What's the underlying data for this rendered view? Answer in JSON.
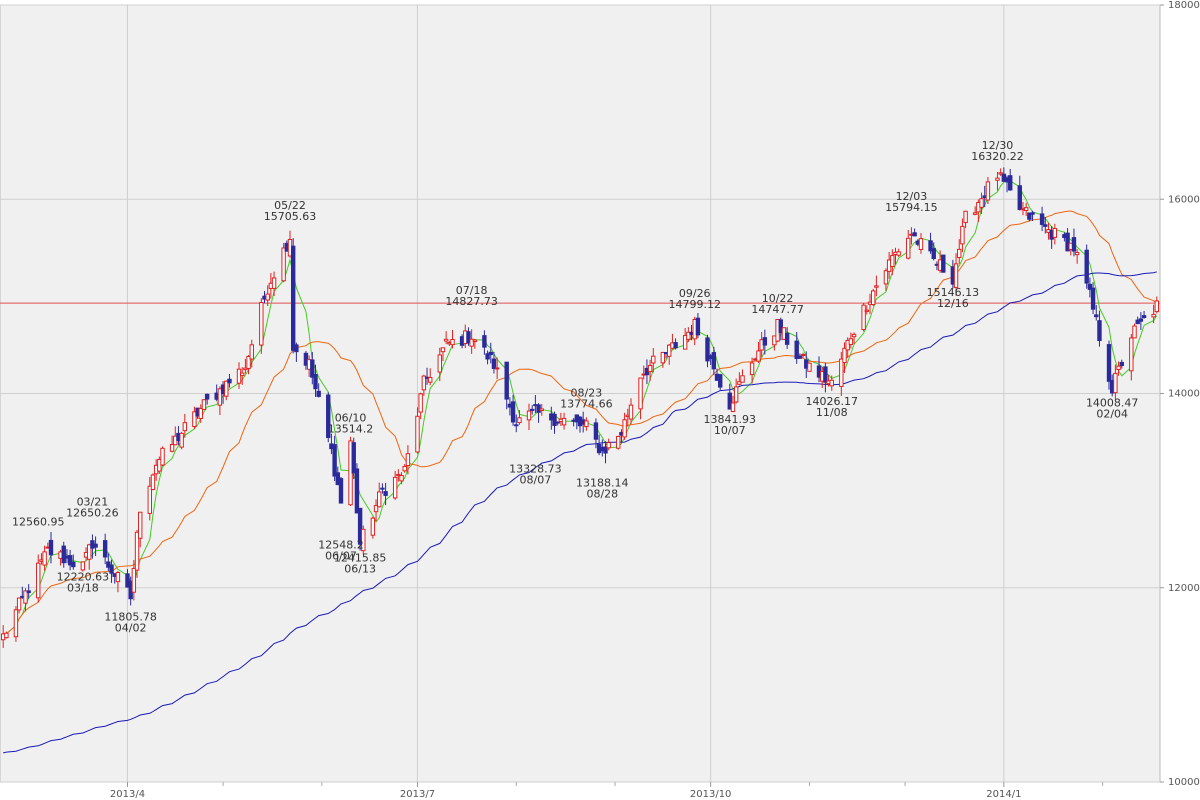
{
  "chart_data": {
    "type": "candlestick",
    "title": "",
    "ylim": [
      10000,
      18000
    ],
    "y_ticks": [
      "10000",
      "12000",
      "14000",
      "16000",
      "18000"
    ],
    "x_ticks": [
      {
        "date": "2013-04-01",
        "label": "2013/4"
      },
      {
        "date": "2013-07-01",
        "label": "2013/7"
      },
      {
        "date": "2013-10-01",
        "label": "2013/10"
      },
      {
        "date": "2014-01-01",
        "label": "2014/1"
      }
    ],
    "x_minor_ticks": [
      "2013-05-01",
      "2013-06-01",
      "2013-08-01",
      "2013-09-01",
      "2013-11-01",
      "2013-12-01",
      "2014-02-01"
    ],
    "x_range": [
      "2013-02-20",
      "2014-02-19"
    ],
    "grid": true,
    "reference_line": 14930,
    "colors": {
      "rising": "#e02020",
      "falling": "#2a2a9a",
      "ma_short": "#44cc22",
      "ma_mid": "#ee6611",
      "ma_long": "#1a1ab8",
      "reference": "#e05050",
      "plot_bg": "#f0f0f0",
      "grid": "#cfcfcf"
    },
    "anchor_points": [
      {
        "date": "2013-02-21",
        "close": 11500
      },
      {
        "date": "2013-03-07",
        "close": 12380
      },
      {
        "date": "2013-03-18",
        "close": 12220
      },
      {
        "date": "2013-03-21",
        "close": 12470
      },
      {
        "date": "2013-04-02",
        "close": 11900
      },
      {
        "date": "2013-04-05",
        "close": 12830
      },
      {
        "date": "2013-04-10",
        "close": 13280
      },
      {
        "date": "2013-04-25",
        "close": 13880
      },
      {
        "date": "2013-05-08",
        "close": 14280
      },
      {
        "date": "2013-05-15",
        "close": 15100
      },
      {
        "date": "2013-05-22",
        "close": 15620
      },
      {
        "date": "2013-05-23",
        "close": 14480
      },
      {
        "date": "2013-05-28",
        "close": 14300
      },
      {
        "date": "2013-06-04",
        "close": 13400
      },
      {
        "date": "2013-06-07",
        "close": 12880
      },
      {
        "date": "2013-06-10",
        "close": 13510
      },
      {
        "date": "2013-06-13",
        "close": 12450
      },
      {
        "date": "2013-06-20",
        "close": 13000
      },
      {
        "date": "2013-06-27",
        "close": 13200
      },
      {
        "date": "2013-07-03",
        "close": 14100
      },
      {
        "date": "2013-07-10",
        "close": 14500
      },
      {
        "date": "2013-07-18",
        "close": 14600
      },
      {
        "date": "2013-07-25",
        "close": 14300
      },
      {
        "date": "2013-08-01",
        "close": 13700
      },
      {
        "date": "2013-08-07",
        "close": 13800
      },
      {
        "date": "2013-08-13",
        "close": 13750
      },
      {
        "date": "2013-08-23",
        "close": 13650
      },
      {
        "date": "2013-08-28",
        "close": 13400
      },
      {
        "date": "2013-09-03",
        "close": 13600
      },
      {
        "date": "2013-09-09",
        "close": 14200
      },
      {
        "date": "2013-09-20",
        "close": 14500
      },
      {
        "date": "2013-09-26",
        "close": 14700
      },
      {
        "date": "2013-10-03",
        "close": 14200
      },
      {
        "date": "2013-10-07",
        "close": 13900
      },
      {
        "date": "2013-10-15",
        "close": 14400
      },
      {
        "date": "2013-10-22",
        "close": 14700
      },
      {
        "date": "2013-10-29",
        "close": 14350
      },
      {
        "date": "2013-11-08",
        "close": 14100
      },
      {
        "date": "2013-11-14",
        "close": 14600
      },
      {
        "date": "2013-11-20",
        "close": 15000
      },
      {
        "date": "2013-11-27",
        "close": 15400
      },
      {
        "date": "2013-12-03",
        "close": 15650
      },
      {
        "date": "2013-12-09",
        "close": 15400
      },
      {
        "date": "2013-12-16",
        "close": 15200
      },
      {
        "date": "2013-12-20",
        "close": 15800
      },
      {
        "date": "2013-12-30",
        "close": 16250
      },
      {
        "date": "2014-01-06",
        "close": 15900
      },
      {
        "date": "2014-01-14",
        "close": 15700
      },
      {
        "date": "2014-01-23",
        "close": 15500
      },
      {
        "date": "2014-01-28",
        "close": 15000
      },
      {
        "date": "2014-02-04",
        "close": 14050
      },
      {
        "date": "2014-02-10",
        "close": 14600
      },
      {
        "date": "2014-02-18",
        "close": 14900
      }
    ],
    "ma_long_start": 10300,
    "annotations": [
      {
        "date": "2013-03-04",
        "price": 12560.95,
        "lines": [
          "12560.95"
        ],
        "pos": "above"
      },
      {
        "date": "2013-03-21",
        "price": 12650.26,
        "lines": [
          "03/21",
          "12650.26"
        ],
        "pos": "above"
      },
      {
        "date": "2013-03-18",
        "price": 12220.63,
        "lines": [
          "12220.63",
          "03/18"
        ],
        "pos": "below"
      },
      {
        "date": "2013-04-02",
        "price": 11805.78,
        "lines": [
          "11805.78",
          "04/02"
        ],
        "pos": "below"
      },
      {
        "date": "2013-05-22",
        "price": 15705.63,
        "lines": [
          "05/22",
          "15705.63"
        ],
        "pos": "above"
      },
      {
        "date": "2013-06-10",
        "price": 13514.2,
        "lines": [
          "06/10",
          "13514.2"
        ],
        "pos": "above"
      },
      {
        "date": "2013-06-07",
        "price": 12548.2,
        "lines": [
          "12548.2",
          "06/07"
        ],
        "pos": "below"
      },
      {
        "date": "2013-06-13",
        "price": 12415.85,
        "lines": [
          "12415.85",
          "06/13"
        ],
        "pos": "below"
      },
      {
        "date": "2013-07-18",
        "price": 14827.73,
        "lines": [
          "07/18",
          "14827.73"
        ],
        "pos": "above"
      },
      {
        "date": "2013-08-23",
        "price": 13774.66,
        "lines": [
          "08/23",
          "13774.66"
        ],
        "pos": "above"
      },
      {
        "date": "2013-08-07",
        "price": 13328.73,
        "lines": [
          "13328.73",
          "08/07"
        ],
        "pos": "below"
      },
      {
        "date": "2013-08-28",
        "price": 13188.14,
        "lines": [
          "13188.14",
          "08/28"
        ],
        "pos": "below"
      },
      {
        "date": "2013-09-26",
        "price": 14799.12,
        "lines": [
          "09/26",
          "14799.12"
        ],
        "pos": "above"
      },
      {
        "date": "2013-10-07",
        "price": 13841.93,
        "lines": [
          "13841.93",
          "10/07"
        ],
        "pos": "below"
      },
      {
        "date": "2013-10-22",
        "price": 14747.77,
        "lines": [
          "10/22",
          "14747.77"
        ],
        "pos": "above"
      },
      {
        "date": "2013-11-08",
        "price": 14026.17,
        "lines": [
          "14026.17",
          "11/08"
        ],
        "pos": "below"
      },
      {
        "date": "2013-12-03",
        "price": 15794.15,
        "lines": [
          "12/03",
          "15794.15"
        ],
        "pos": "above"
      },
      {
        "date": "2013-12-16",
        "price": 15146.13,
        "lines": [
          "15146.13",
          "12/16"
        ],
        "pos": "below"
      },
      {
        "date": "2013-12-30",
        "price": 16320.22,
        "lines": [
          "12/30",
          "16320.22"
        ],
        "pos": "above"
      },
      {
        "date": "2014-02-04",
        "price": 14008.47,
        "lines": [
          "14008.47",
          "02/04"
        ],
        "pos": "below"
      }
    ]
  }
}
